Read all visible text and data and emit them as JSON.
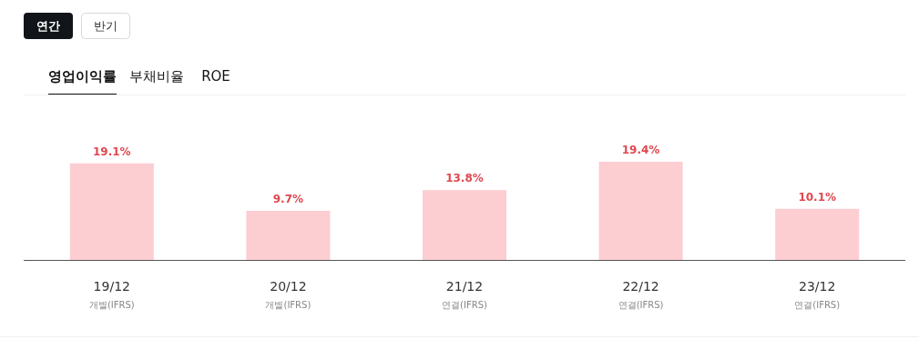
{
  "chart_data": {
    "type": "bar",
    "categories": [
      "19/12\n개별(IFRS)",
      "20/12\n개별(IFRS)",
      "21/12\n연결(IFRS)",
      "22/12\n연결(IFRS)",
      "23/12\n연결(IFRS)"
    ],
    "values": [
      19.1,
      9.7,
      13.8,
      19.4,
      10.1
    ],
    "value_labels": [
      "19.1%",
      "9.7%",
      "13.8%",
      "19.4%",
      "10.1%"
    ],
    "color": "#fccdd1",
    "annotations": [
      "연간",
      "반기",
      "영업이익률",
      "부채비율",
      "ROE"
    ]
  }
}
